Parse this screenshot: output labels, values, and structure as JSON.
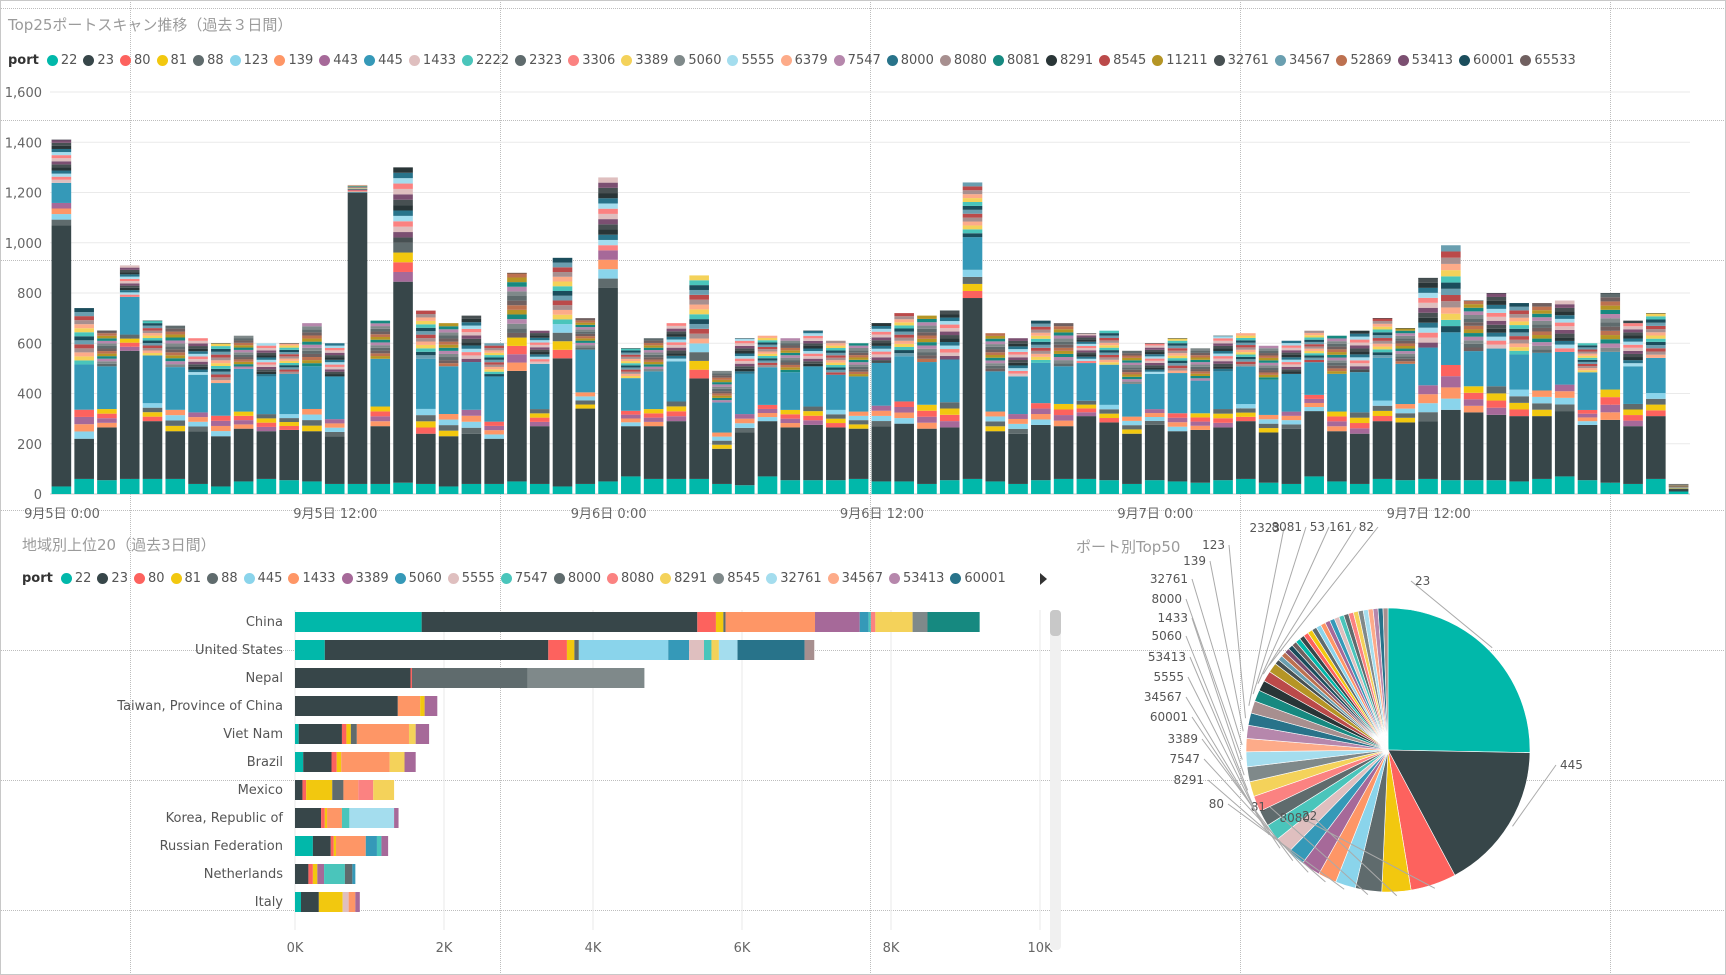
{
  "palette": [
    "#01B8AA",
    "#374649",
    "#FD625E",
    "#F2C80F",
    "#5F6B6D",
    "#8AD4EB",
    "#FE9666",
    "#A66999",
    "#3599B8",
    "#DFBFBF",
    "#4AC5BB",
    "#5F6B6D",
    "#FB8281",
    "#F4D25A",
    "#7F898A",
    "#A4DDEE",
    "#FDAB89",
    "#B687AC",
    "#28738A",
    "#A78F8F",
    "#168980",
    "#293537",
    "#BB4A4A",
    "#B59525",
    "#475052",
    "#6A9FB0",
    "#BD7150",
    "#7B4F71",
    "#1B4D5C",
    "#706060"
  ],
  "top_chart": {
    "title": "Top25ポートスキャン推移（過去３日間）",
    "legend_title": "port",
    "ports": [
      "22",
      "23",
      "80",
      "81",
      "88",
      "123",
      "139",
      "443",
      "445",
      "1433",
      "2222",
      "2323",
      "3306",
      "3389",
      "5060",
      "5555",
      "6379",
      "7547",
      "8000",
      "8080",
      "8081",
      "8291",
      "8545",
      "11211",
      "32761",
      "34567",
      "52869",
      "53413",
      "60001",
      "65533"
    ]
  },
  "bar_chart": {
    "title": "地域別上位20（過去3日間）",
    "legend_title": "port",
    "ports": [
      "22",
      "23",
      "80",
      "81",
      "88",
      "445",
      "1433",
      "3389",
      "5060",
      "5555",
      "7547",
      "8000",
      "8080",
      "8291",
      "8545",
      "32761",
      "34567",
      "53413",
      "60001"
    ]
  },
  "pie_chart": {
    "title": "ポート別Top50"
  },
  "chart_data": [
    {
      "type": "bar",
      "stacked": true,
      "title": "Top25ポートスキャン推移（過去３日間）",
      "ylim": [
        0,
        1600
      ],
      "yticks": [
        "0",
        "200",
        "400",
        "600",
        "800",
        "1,000",
        "1,200",
        "1,400",
        "1,600"
      ],
      "xtick_labels": [
        "9月5日 0:00",
        "9月5日 12:00",
        "9月6日 0:00",
        "9月6日 12:00",
        "9月7日 0:00",
        "9月7日 12:00"
      ],
      "xtick_index": [
        0,
        12,
        24,
        36,
        48,
        60
      ],
      "grid": true,
      "legend": "top",
      "totals": [
        1410,
        740,
        650,
        910,
        690,
        670,
        620,
        600,
        630,
        600,
        600,
        680,
        600,
        1230,
        690,
        1300,
        730,
        680,
        710,
        600,
        880,
        650,
        940,
        700,
        1260,
        580,
        620,
        680,
        870,
        490,
        620,
        630,
        620,
        650,
        610,
        600,
        680,
        720,
        710,
        730,
        1240,
        640,
        620,
        690,
        680,
        640,
        650,
        570,
        600,
        620,
        580,
        630,
        640,
        590,
        610,
        650,
        630,
        650,
        700,
        660,
        860,
        990,
        770,
        800,
        760,
        750,
        770,
        600,
        800,
        690,
        720,
        40
      ],
      "port22_values": [
        30,
        60,
        55,
        60,
        60,
        60,
        40,
        30,
        50,
        60,
        55,
        50,
        40,
        40,
        40,
        45,
        40,
        30,
        40,
        40,
        50,
        40,
        30,
        40,
        50,
        70,
        60,
        60,
        60,
        40,
        35,
        70,
        55,
        55,
        55,
        60,
        50,
        50,
        40,
        55,
        60,
        50,
        40,
        55,
        60,
        60,
        55,
        40,
        55,
        50,
        45,
        55,
        60,
        45,
        40,
        70,
        50,
        40,
        60,
        55,
        60,
        55,
        55,
        55,
        50,
        60,
        70,
        55,
        45,
        40,
        60,
        10
      ],
      "port23_values": [
        1040,
        160,
        210,
        510,
        230,
        190,
        210,
        200,
        210,
        190,
        200,
        200,
        190,
        1160,
        230,
        800,
        200,
        200,
        200,
        180,
        440,
        230,
        510,
        300,
        770,
        200,
        210,
        230,
        400,
        140,
        210,
        220,
        210,
        220,
        210,
        200,
        220,
        230,
        220,
        210,
        720,
        200,
        200,
        220,
        210,
        250,
        230,
        200,
        220,
        200,
        210,
        210,
        230,
        200,
        220,
        260,
        200,
        200,
        230,
        230,
        230,
        280,
        270,
        260,
        260,
        250,
        260,
        220,
        250,
        230,
        250,
        10
      ],
      "port445_values": [
        80,
        180,
        170,
        150,
        190,
        170,
        150,
        130,
        170,
        150,
        160,
        170,
        170,
        0,
        190,
        0,
        200,
        190,
        190,
        180,
        0,
        180,
        0,
        170,
        0,
        130,
        150,
        160,
        0,
        120,
        160,
        150,
        150,
        160,
        140,
        140,
        170,
        180,
        170,
        170,
        130,
        160,
        150,
        160,
        150,
        150,
        160,
        130,
        140,
        160,
        130,
        150,
        150,
        140,
        150,
        130,
        150,
        160,
        170,
        160,
        150,
        130,
        140,
        150,
        140,
        150,
        130,
        150,
        150,
        150,
        140,
        0
      ],
      "other_values": [
        260,
        340,
        215,
        190,
        210,
        250,
        220,
        240,
        200,
        200,
        185,
        260,
        200,
        30,
        230,
        455,
        290,
        260,
        280,
        200,
        390,
        200,
        400,
        190,
        440,
        180,
        200,
        230,
        410,
        190,
        215,
        190,
        205,
        215,
        205,
        200,
        240,
        260,
        280,
        295,
        330,
        230,
        230,
        255,
        260,
        180,
        205,
        200,
        185,
        210,
        195,
        215,
        200,
        205,
        200,
        190,
        230,
        250,
        240,
        215,
        420,
        525,
        305,
        335,
        310,
        300,
        310,
        175,
        355,
        260,
        270,
        20
      ]
    },
    {
      "type": "bar",
      "orientation": "horizontal",
      "stacked": true,
      "title": "地域別上位20（過去3日間）",
      "xlim": [
        0,
        10000
      ],
      "xticks": [
        "0K",
        "2K",
        "4K",
        "6K",
        "8K",
        "10K"
      ],
      "legend": "top",
      "categories": [
        "China",
        "United States",
        "Nepal",
        "Taiwan, Province of China",
        "Viet Nam",
        "Brazil",
        "Mexico",
        "Korea, Republic of",
        "Russian Federation",
        "Netherlands",
        "Italy"
      ],
      "segments": [
        [
          [
            0,
            1700
          ],
          [
            1,
            3700
          ],
          [
            2,
            250
          ],
          [
            3,
            100
          ],
          [
            4,
            30
          ],
          [
            6,
            1200
          ],
          [
            7,
            600
          ],
          [
            8,
            120
          ],
          [
            10,
            30
          ],
          [
            12,
            60
          ],
          [
            13,
            500
          ],
          [
            14,
            200
          ],
          [
            20,
            700
          ]
        ],
        [
          [
            0,
            400
          ],
          [
            1,
            3000
          ],
          [
            2,
            250
          ],
          [
            3,
            100
          ],
          [
            4,
            60
          ],
          [
            5,
            1200
          ],
          [
            8,
            280
          ],
          [
            9,
            200
          ],
          [
            10,
            100
          ],
          [
            13,
            100
          ],
          [
            15,
            250
          ],
          [
            18,
            900
          ],
          [
            19,
            130
          ]
        ],
        [
          [
            1,
            1550
          ],
          [
            2,
            20
          ],
          [
            4,
            1550
          ],
          [
            14,
            1570
          ]
        ],
        [
          [
            1,
            1380
          ],
          [
            6,
            300
          ],
          [
            3,
            60
          ],
          [
            7,
            170
          ],
          [
            2,
            0
          ]
        ],
        [
          [
            0,
            50
          ],
          [
            1,
            580
          ],
          [
            2,
            60
          ],
          [
            3,
            60
          ],
          [
            4,
            80
          ],
          [
            6,
            700
          ],
          [
            13,
            90
          ],
          [
            7,
            180
          ]
        ],
        [
          [
            0,
            110
          ],
          [
            1,
            380
          ],
          [
            2,
            70
          ],
          [
            3,
            60
          ],
          [
            6,
            650
          ],
          [
            13,
            200
          ],
          [
            7,
            150
          ]
        ],
        [
          [
            1,
            100
          ],
          [
            2,
            50
          ],
          [
            3,
            350
          ],
          [
            4,
            150
          ],
          [
            6,
            200
          ],
          [
            12,
            200
          ],
          [
            13,
            280
          ]
        ],
        [
          [
            1,
            350
          ],
          [
            2,
            50
          ],
          [
            3,
            30
          ],
          [
            6,
            200
          ],
          [
            10,
            100
          ],
          [
            15,
            600
          ],
          [
            7,
            60
          ]
        ],
        [
          [
            0,
            240
          ],
          [
            1,
            240
          ],
          [
            2,
            40
          ],
          [
            3,
            30
          ],
          [
            6,
            400
          ],
          [
            8,
            150
          ],
          [
            10,
            60
          ],
          [
            7,
            90
          ]
        ],
        [
          [
            1,
            180
          ],
          [
            2,
            60
          ],
          [
            3,
            60
          ],
          [
            7,
            90
          ],
          [
            10,
            280
          ],
          [
            4,
            100
          ],
          [
            8,
            40
          ]
        ],
        [
          [
            0,
            80
          ],
          [
            1,
            240
          ],
          [
            3,
            320
          ],
          [
            9,
            80
          ],
          [
            6,
            90
          ],
          [
            7,
            60
          ]
        ]
      ]
    },
    {
      "type": "pie",
      "title": "ポート別Top50",
      "labels": [
        "23",
        "445",
        "22",
        "8080",
        "81",
        "80",
        "8291",
        "7547",
        "3389",
        "60001",
        "34567",
        "5555",
        "53413",
        "5060",
        "1433",
        "8000",
        "32761",
        "139",
        "123",
        "2323",
        "8081",
        "53",
        "161",
        "82"
      ],
      "label_sides": [
        "right",
        "right",
        "right",
        "left",
        "left",
        "left",
        "left",
        "left",
        "left",
        "left",
        "left",
        "left",
        "left",
        "left",
        "left",
        "left",
        "left",
        "left",
        "left",
        "left",
        "left",
        "left",
        "left",
        "left"
      ],
      "values": [
        25.3,
        16.9,
        5.2,
        3.3,
        3.0,
        2.3,
        2.1,
        2.2,
        2.0,
        1.9,
        1.9,
        1.8,
        1.8,
        1.7,
        1.7,
        1.7,
        1.5,
        1.5,
        1.4,
        1.4,
        1.3,
        1.2,
        1.2,
        1.1
      ],
      "remaining_slices": 26,
      "remaining_total": 14.6
    }
  ]
}
